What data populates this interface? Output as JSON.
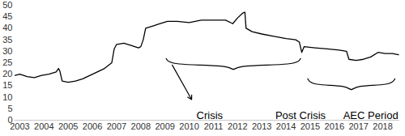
{
  "chart_data": {
    "type": "line",
    "x": [
      2002.8,
      2003.0,
      2003.3,
      2003.6,
      2003.9,
      2004.2,
      2004.5,
      2004.6,
      2004.65,
      2004.75,
      2005.0,
      2005.3,
      2005.6,
      2005.9,
      2006.2,
      2006.5,
      2006.8,
      2006.9,
      2007.0,
      2007.3,
      2007.6,
      2007.9,
      2008.0,
      2008.1,
      2008.2,
      2008.5,
      2008.8,
      2009.1,
      2009.5,
      2010.0,
      2010.5,
      2011.0,
      2011.5,
      2011.8,
      2012.0,
      2012.2,
      2012.3,
      2012.35,
      2012.6,
      2013.0,
      2013.5,
      2014.0,
      2014.4,
      2014.55,
      2014.65,
      2014.75,
      2015.2,
      2015.7,
      2016.2,
      2016.5,
      2016.6,
      2016.9,
      2017.2,
      2017.5,
      2017.8,
      2018.1,
      2018.4,
      2018.65
    ],
    "values": [
      19.5,
      20,
      19,
      18.5,
      19.5,
      20,
      21,
      22.5,
      21.5,
      17,
      16.5,
      17,
      18,
      19.5,
      21,
      22.5,
      25,
      31,
      33,
      33.5,
      32.5,
      31.5,
      32,
      35,
      40,
      41,
      42,
      43,
      43,
      42.5,
      43.5,
      43.5,
      43.5,
      42,
      44.5,
      46.5,
      47,
      40,
      38.5,
      37.5,
      36.5,
      35.5,
      35,
      34,
      29.5,
      32,
      31.5,
      31,
      30.5,
      30,
      26.5,
      26,
      26.5,
      27.5,
      29.5,
      29,
      29,
      28.5
    ],
    "color": "#000000",
    "xlim": [
      2002.8,
      2018.7
    ],
    "xticks": [
      2003,
      2004,
      2005,
      2006,
      2007,
      2008,
      2009,
      2010,
      2011,
      2012,
      2013,
      2014,
      2015,
      2016,
      2017,
      2018
    ],
    "ylim": [
      0,
      50
    ],
    "yticks": [
      0,
      5,
      10,
      15,
      20,
      25,
      30,
      35,
      40,
      45,
      50
    ],
    "grid": false,
    "annotations": [
      {
        "text": "Crisis",
        "x": 2010.3,
        "y": 2,
        "arrow": {
          "x": [
            2009.3,
            2010.1
          ],
          "y": [
            24,
            9
          ]
        }
      },
      {
        "text": "Post Crisis",
        "x": 2014.6,
        "y": 2,
        "bracket": {
          "x": [
            2009.05,
            2014.6
          ],
          "y": 26.8
        }
      },
      {
        "text": "AEC Period",
        "x": 2017.5,
        "y": 2,
        "bracket": {
          "x": [
            2014.9,
            2018.5
          ],
          "y": 18
        }
      }
    ]
  }
}
